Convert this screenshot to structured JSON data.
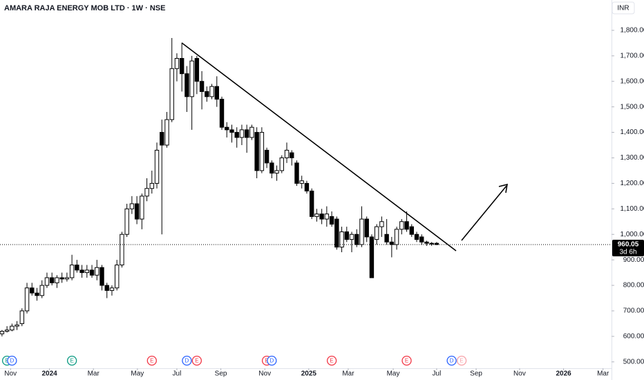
{
  "chart_data": {
    "type": "candlestick",
    "title": "AMARA RAJA ENERGY MOB LTD · 1W · NSE",
    "currency": "INR",
    "categories": [
      null,
      null,
      null,
      null,
      null,
      null,
      null,
      null,
      null,
      null,
      null,
      null,
      null,
      null,
      null,
      null,
      null,
      null,
      null,
      null,
      null,
      null,
      null,
      null,
      null,
      null,
      null,
      null,
      null,
      null,
      null,
      null,
      null,
      null,
      null,
      null,
      null,
      null,
      null,
      null,
      null,
      null,
      null,
      null,
      null,
      null,
      null,
      null,
      null,
      null,
      null,
      null,
      null,
      null,
      null,
      null,
      null,
      null,
      null,
      null,
      null,
      null,
      null,
      null,
      null,
      null,
      null,
      null,
      null,
      null,
      null,
      null,
      null,
      null,
      null,
      null,
      null,
      null,
      null,
      null,
      null,
      null,
      null,
      null,
      null,
      null,
      null,
      null
    ],
    "open": [
      610,
      620,
      625,
      640,
      650,
      700,
      790,
      770,
      760,
      800,
      830,
      810,
      830,
      825,
      830,
      880,
      860,
      850,
      860,
      840,
      870,
      800,
      780,
      790,
      880,
      1000,
      1100,
      1120,
      1060,
      1150,
      1180,
      1200,
      1400,
      1350,
      1450,
      1650,
      1690,
      1630,
      1540,
      1690,
      1600,
      1560,
      1540,
      1580,
      1530,
      1420,
      1410,
      1400,
      1380,
      1410,
      1380,
      1400,
      1250,
      1330,
      1280,
      1240,
      1250,
      1300,
      1320,
      1280,
      1200,
      1200,
      1170,
      1070,
      1080,
      1060,
      1070,
      1060,
      950,
      1010,
      980,
      1000,
      960,
      1060,
      990,
      980,
      1030,
      1000,
      970,
      960,
      1020,
      1050,
      1030,
      1000,
      990,
      970,
      965,
      965
    ],
    "high": [
      625,
      640,
      650,
      660,
      710,
      810,
      810,
      790,
      820,
      850,
      850,
      840,
      850,
      850,
      920,
      900,
      880,
      880,
      880,
      900,
      880,
      810,
      800,
      900,
      1010,
      1120,
      1150,
      1150,
      1160,
      1220,
      1250,
      1360,
      1450,
      1480,
      1770,
      1710,
      1750,
      1660,
      1700,
      1700,
      1640,
      1580,
      1590,
      1620,
      1540,
      1440,
      1430,
      1420,
      1430,
      1430,
      1430,
      1420,
      1420,
      1340,
      1290,
      1270,
      1310,
      1360,
      1330,
      1290,
      1230,
      1210,
      1180,
      1100,
      1100,
      1110,
      1090,
      1070,
      1030,
      1030,
      1010,
      1020,
      1110,
      1070,
      1000,
      1040,
      1070,
      1060,
      990,
      1030,
      1060,
      1090,
      1040,
      1010,
      1000,
      975,
      970,
      970
    ],
    "low": [
      600,
      615,
      620,
      625,
      640,
      690,
      760,
      740,
      750,
      790,
      800,
      790,
      810,
      815,
      820,
      850,
      830,
      830,
      830,
      820,
      780,
      750,
      760,
      780,
      870,
      990,
      1080,
      1040,
      1020,
      1130,
      1160,
      1180,
      1000,
      1340,
      1440,
      1600,
      1560,
      1480,
      1410,
      1550,
      1490,
      1520,
      1530,
      1500,
      1410,
      1380,
      1360,
      1340,
      1350,
      1320,
      1370,
      1220,
      1240,
      1260,
      1220,
      1210,
      1240,
      1280,
      1270,
      1190,
      1180,
      1160,
      1060,
      1050,
      1040,
      1030,
      1030,
      940,
      930,
      970,
      930,
      950,
      950,
      970,
      830,
      960,
      990,
      960,
      910,
      940,
      1000,
      1010,
      990,
      970,
      960,
      955,
      955,
      958
    ],
    "close": [
      620,
      625,
      640,
      645,
      700,
      790,
      770,
      760,
      800,
      830,
      810,
      830,
      825,
      830,
      880,
      860,
      850,
      860,
      840,
      870,
      800,
      780,
      790,
      880,
      1000,
      1100,
      1120,
      1060,
      1150,
      1180,
      1200,
      1330,
      1350,
      1450,
      1650,
      1690,
      1630,
      1540,
      1680,
      1600,
      1560,
      1540,
      1580,
      1530,
      1420,
      1410,
      1400,
      1380,
      1410,
      1380,
      1420,
      1250,
      1400,
      1280,
      1240,
      1250,
      1300,
      1330,
      1300,
      1200,
      1210,
      1170,
      1070,
      1080,
      1060,
      1080,
      1040,
      950,
      1010,
      980,
      1000,
      960,
      1060,
      990,
      830,
      1030,
      1050,
      970,
      960,
      1020,
      1050,
      1020,
      1000,
      980,
      970,
      965,
      962,
      960
    ],
    "up_color": "#ffffff",
    "down_color": "#000000",
    "wick_color": "#000000",
    "ylim": [
      475,
      1919
    ],
    "yticks": [
      {
        "value": 500,
        "label": "500.00"
      },
      {
        "value": 600,
        "label": "600.00"
      },
      {
        "value": 700,
        "label": "700.00"
      },
      {
        "value": 800,
        "label": "800.00"
      },
      {
        "value": 900,
        "label": "900.00"
      },
      {
        "value": 1000,
        "label": "1,000.00"
      },
      {
        "value": 1100,
        "label": "1,100.00"
      },
      {
        "value": 1200,
        "label": "1,200.00"
      },
      {
        "value": 1300,
        "label": "1,300.00"
      },
      {
        "value": 1400,
        "label": "1,400.00"
      },
      {
        "value": 1500,
        "label": "1,500.00"
      },
      {
        "value": 1600,
        "label": "1,600.00"
      },
      {
        "value": 1700,
        "label": "1,700.00"
      },
      {
        "value": 1800,
        "label": "1,800.00"
      }
    ],
    "xlim": [
      -0.4,
      122
    ],
    "xticks": [
      {
        "value": 1.7,
        "label": "Nov"
      },
      {
        "value": 9.5,
        "label": "2024"
      },
      {
        "value": 18.3,
        "label": "Mar"
      },
      {
        "value": 27.1,
        "label": "May"
      },
      {
        "value": 35,
        "label": "Jul"
      },
      {
        "value": 43.8,
        "label": "Sep"
      },
      {
        "value": 52.6,
        "label": "Nov"
      },
      {
        "value": 61.4,
        "label": "2025"
      },
      {
        "value": 69.3,
        "label": "Mar"
      },
      {
        "value": 78.3,
        "label": "May"
      },
      {
        "value": 87,
        "label": "Jul"
      },
      {
        "value": 94.9,
        "label": "Sep"
      },
      {
        "value": 103.6,
        "label": "Nov"
      },
      {
        "value": 112.4,
        "label": "2026"
      },
      {
        "value": 120.3,
        "label": "Mar"
      }
    ],
    "last_price": 960.05,
    "countdown": "3d 6h",
    "events": [
      {
        "label": "E",
        "at": 1,
        "color": "#089981"
      },
      {
        "label": "D",
        "at": 2,
        "color": "#2962ff"
      },
      {
        "label": "E",
        "at": 14,
        "color": "#089981"
      },
      {
        "label": "E",
        "at": 30,
        "color": "#f23645"
      },
      {
        "label": "D",
        "at": 37,
        "color": "#2962ff"
      },
      {
        "label": "E",
        "at": 39,
        "color": "#f23645"
      },
      {
        "label": "E",
        "at": 53,
        "color": "#f23645"
      },
      {
        "label": "D",
        "at": 54,
        "color": "#2962ff"
      },
      {
        "label": "E",
        "at": 66,
        "color": "#f23645"
      },
      {
        "label": "E",
        "at": 81,
        "color": "#f23645"
      },
      {
        "label": "D",
        "at": 90,
        "color": "#2962ff"
      },
      {
        "label": "E",
        "at": 92,
        "color": "#f7a1a8"
      }
    ]
  }
}
